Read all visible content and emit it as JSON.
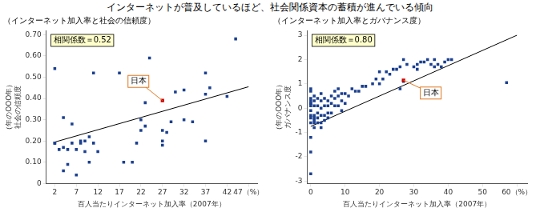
{
  "title": "インターネットが普及しているほど、社会関係資本の蓄積が進んでいる傾向",
  "chart_data": [
    {
      "type": "scatter",
      "title": "（インターネット加入率と社会の信頼度）",
      "xlabel": "百人当たりインターネット加入率（2007年）",
      "ylabel": "（年のOOO年）\n社会の信頼度",
      "xlim": [
        0,
        49
      ],
      "ylim": [
        0.0,
        0.72
      ],
      "xticks": [
        2,
        7,
        12,
        17,
        22,
        27,
        32,
        37,
        42,
        {
          "value": 47,
          "label": "47（%）"
        }
      ],
      "yticks": [
        0,
        {
          "value": 0.1,
          "label": "0.10"
        },
        {
          "value": 0.2,
          "label": "0.20"
        },
        {
          "value": 0.3,
          "label": "0.30"
        },
        {
          "value": 0.4,
          "label": "0.40"
        },
        {
          "value": 0.5,
          "label": "0.50"
        },
        {
          "value": 0.6,
          "label": "0.60"
        },
        {
          "value": 0.7,
          "label": "0.70"
        }
      ],
      "grid": false,
      "series": [
        {
          "color": "#1a3f8f",
          "marker": "square",
          "x": [
            2,
            2,
            2,
            3,
            4,
            4,
            4,
            5,
            5,
            6,
            6,
            7,
            7,
            8,
            8,
            9,
            9,
            10,
            10,
            11,
            11,
            12,
            17,
            18,
            20,
            21,
            22,
            22,
            23,
            23,
            24,
            27,
            27,
            27,
            28,
            29,
            30,
            32,
            32,
            34,
            37,
            37,
            37,
            38,
            42,
            44
          ],
          "values": [
            0.19,
            0.54,
            0.19,
            0.16,
            0.06,
            0.17,
            0.31,
            0.09,
            0.16,
            0.19,
            0.28,
            0.04,
            0.16,
            0.19,
            0.2,
            0.15,
            0.2,
            0.1,
            0.22,
            0.19,
            0.52,
            0.15,
            0.52,
            0.1,
            0.1,
            0.19,
            0.25,
            0.3,
            0.27,
            0.38,
            0.59,
            0.25,
            0.18,
            0.2,
            0.24,
            0.29,
            0.43,
            0.3,
            0.44,
            0.29,
            0.42,
            0.2,
            0.52,
            0.45,
            0.41,
            0.68
          ]
        },
        {
          "color": "#cc0000",
          "marker": "square",
          "x": [
            27
          ],
          "values": [
            0.39
          ]
        },
        {
          "type": "line",
          "color": "#000000",
          "x": [
            2,
            47
          ],
          "values": [
            0.195,
            0.455
          ]
        }
      ],
      "annotations": [
        {
          "text": "相関係数＝0.52",
          "color": "#ffffcc"
        },
        {
          "text": "日本",
          "x": 27,
          "y": 0.39,
          "color": "#e07820"
        }
      ]
    },
    {
      "type": "scatter",
      "title": "（インターネット加入率とガバナンス度）",
      "xlabel": "百人当たりインターネット加入率（2007年）",
      "ylabel": "（年のOOO年）\nガバナンス度",
      "xlim": [
        -1,
        63
      ],
      "ylim": [
        -3.1,
        3.2
      ],
      "xticks": [
        0,
        10,
        20,
        30,
        40,
        50,
        {
          "value": 60,
          "label": "60（%）"
        }
      ],
      "yticks": [
        -3,
        -2,
        -1,
        0,
        1,
        2,
        3
      ],
      "grid": false,
      "series": [
        {
          "color": "#1a3f8f",
          "marker": "square",
          "x": [
            0,
            0,
            0,
            0,
            0,
            0,
            0,
            0,
            0,
            0,
            0,
            0,
            0,
            0,
            1,
            1,
            1,
            1,
            1,
            1,
            1,
            1,
            2,
            2,
            2,
            2,
            2,
            3,
            3,
            3,
            3,
            3,
            3,
            4,
            4,
            4,
            4,
            5,
            5,
            5,
            5,
            6,
            6,
            6,
            7,
            7,
            7,
            8,
            8,
            8,
            9,
            9,
            9,
            10,
            10,
            11,
            12,
            13,
            14,
            15,
            16,
            18,
            19,
            20,
            20,
            21,
            22,
            23,
            24,
            25,
            26,
            26,
            27,
            27,
            28,
            30,
            31,
            31,
            32,
            33,
            34,
            35,
            36,
            36,
            37,
            38,
            39,
            40,
            41,
            57
          ],
          "values": [
            -0.6,
            -0.4,
            -0.3,
            -0.1,
            0.1,
            0.2,
            0.3,
            0.4,
            0.7,
            0.8,
            0.2,
            -1.2,
            -2.7,
            -1.8,
            -0.8,
            -0.6,
            -0.5,
            -0.4,
            -0.3,
            0.1,
            0.3,
            0.5,
            -0.6,
            -0.4,
            -0.2,
            0.1,
            0.4,
            -0.8,
            -0.6,
            -0.3,
            0.0,
            0.3,
            0.6,
            -0.5,
            -0.3,
            0.1,
            0.4,
            -0.4,
            -0.2,
            0.1,
            0.3,
            -0.2,
            0.2,
            0.5,
            0.1,
            0.4,
            0.7,
            0.1,
            0.5,
            0.8,
            -0.1,
            0.3,
            0.6,
            0.2,
            0.6,
            0.5,
            0.8,
            0.7,
            0.7,
            0.9,
            0.9,
            1.0,
            1.2,
            1.0,
            1.5,
            1.2,
            1.5,
            1.4,
            1.6,
            1.6,
            0.8,
            1.7,
            1.1,
            2.0,
            1.8,
            1.7,
            1.6,
            1.8,
            1.9,
            1.9,
            2.0,
            1.8,
            2.0,
            1.7,
            1.8,
            1.7,
            1.9,
            2.0,
            2.0,
            1.05
          ]
        },
        {
          "color": "#cc0000",
          "marker": "square",
          "x": [
            27
          ],
          "values": [
            1.15
          ]
        },
        {
          "type": "line",
          "color": "#000000",
          "x": [
            0,
            60
          ],
          "values": [
            -0.75,
            3.0
          ]
        }
      ],
      "annotations": [
        {
          "text": "相関係数＝0.80",
          "color": "#ffffcc"
        },
        {
          "text": "日本",
          "x": 27,
          "y": 1.15,
          "color": "#e07820"
        }
      ]
    }
  ]
}
